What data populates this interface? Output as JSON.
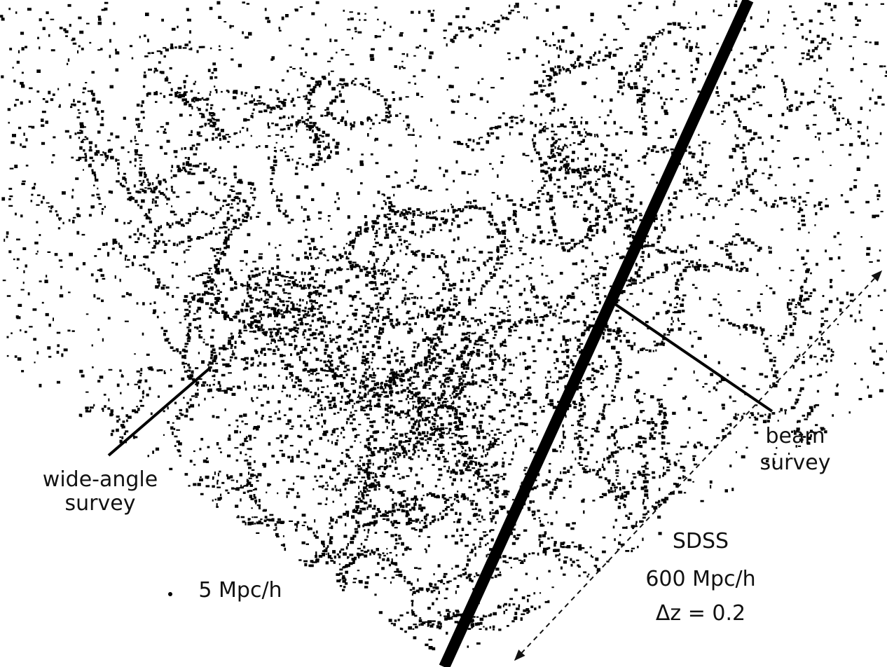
{
  "wide_angle_label": {
    "line1": "wide-angle",
    "line2": "survey"
  },
  "beam_label": {
    "line1": "beam",
    "line2": "survey"
  },
  "scale_label": "5 Mpc/h",
  "survey_info": {
    "name": "SDSS",
    "depth": "600 Mpc/h",
    "redshift": "Δz = 0.2"
  }
}
